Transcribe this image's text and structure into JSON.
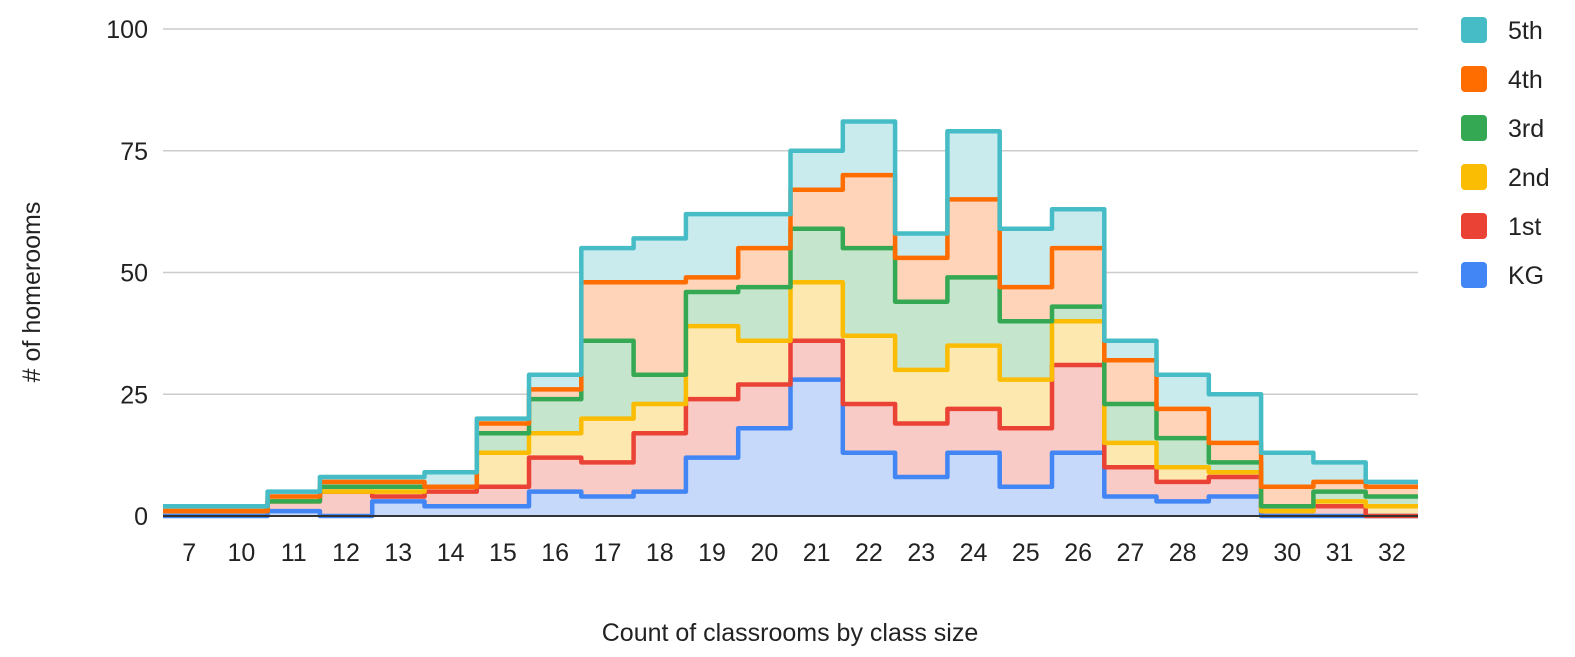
{
  "chart_data": {
    "type": "area",
    "stacked": true,
    "step": true,
    "title": "",
    "xlabel": "Count of classrooms by class size",
    "ylabel": "# of homerooms",
    "ylim": [
      0,
      100
    ],
    "yticks": [
      0,
      25,
      50,
      75,
      100
    ],
    "grid": true,
    "legend_position": "right",
    "categories": [
      "7",
      "10",
      "11",
      "12",
      "13",
      "14",
      "15",
      "16",
      "17",
      "18",
      "19",
      "20",
      "21",
      "22",
      "23",
      "24",
      "25",
      "26",
      "27",
      "28",
      "29",
      "30",
      "31",
      "32"
    ],
    "series": [
      {
        "name": "KG",
        "color": "#4285f4",
        "fill": "#c6d9fb",
        "values": [
          0,
          0,
          1,
          0,
          3,
          2,
          2,
          5,
          4,
          5,
          12,
          18,
          28,
          13,
          8,
          13,
          6,
          13,
          4,
          3,
          4,
          0,
          0,
          0
        ]
      },
      {
        "name": "1st",
        "color": "#ea4335",
        "fill": "#f8cbc7",
        "values": [
          1,
          1,
          2,
          5,
          1,
          3,
          4,
          7,
          7,
          12,
          12,
          9,
          8,
          10,
          11,
          9,
          12,
          18,
          6,
          4,
          4,
          1,
          2,
          0
        ]
      },
      {
        "name": "2nd",
        "color": "#fbbc04",
        "fill": "#fde9b0",
        "values": [
          0,
          0,
          0,
          0,
          1,
          1,
          7,
          5,
          9,
          6,
          15,
          9,
          12,
          14,
          11,
          13,
          10,
          9,
          5,
          3,
          1,
          0,
          1,
          2
        ]
      },
      {
        "name": "3rd",
        "color": "#34a853",
        "fill": "#c5e5cd",
        "values": [
          0,
          0,
          0,
          1,
          1,
          0,
          4,
          7,
          16,
          6,
          7,
          11,
          11,
          18,
          14,
          14,
          12,
          3,
          8,
          6,
          2,
          1,
          2,
          2
        ]
      },
      {
        "name": "4th",
        "color": "#ff6d01",
        "fill": "#ffd4b8",
        "values": [
          0,
          0,
          1,
          1,
          1,
          0,
          2,
          2,
          12,
          19,
          3,
          8,
          8,
          15,
          9,
          16,
          7,
          12,
          9,
          6,
          4,
          4,
          2,
          2
        ]
      },
      {
        "name": "5th",
        "color": "#46bdc6",
        "fill": "#c9ebee",
        "values": [
          1,
          1,
          1,
          1,
          1,
          3,
          1,
          3,
          7,
          9,
          13,
          7,
          8,
          11,
          5,
          14,
          12,
          8,
          4,
          7,
          10,
          7,
          4,
          1
        ]
      }
    ]
  }
}
